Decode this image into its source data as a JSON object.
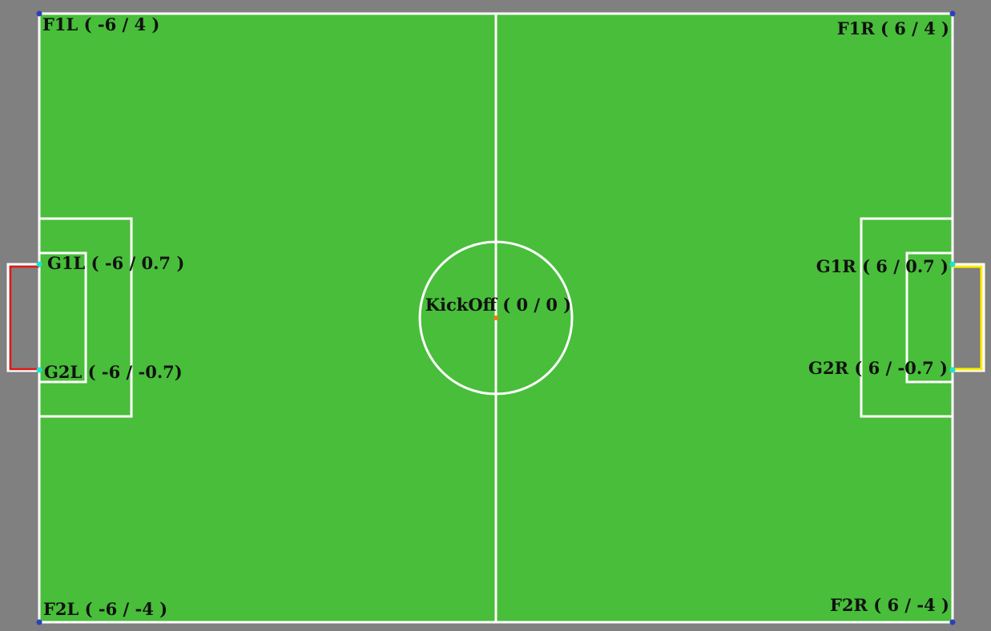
{
  "colors": {
    "background": "#808080",
    "field": "#48BE3A",
    "lines": "#FFFFFF",
    "left_goal": "#E01818",
    "right_goal": "#FFF000",
    "corner_marker": "#2A3FBF",
    "goal_post_marker": "#19E6D0",
    "kickoff_marker": "#F07818",
    "label_text": "#111111"
  },
  "landmarks": {
    "f1l": {
      "name": "F1L",
      "coords": "( -6 / 4 )",
      "x": -6,
      "y": 4
    },
    "f1r": {
      "name": "F1R",
      "coords": "( 6 / 4 )",
      "x": 6,
      "y": 4
    },
    "f2l": {
      "name": "F2L",
      "coords": "( -6 / -4 )",
      "x": -6,
      "y": -4
    },
    "f2r": {
      "name": "F2R",
      "coords": "( 6 / -4 )",
      "x": 6,
      "y": -4
    },
    "g1l": {
      "name": "G1L",
      "coords": "( -6 / 0.7 )",
      "x": -6,
      "y": 0.7
    },
    "g2l": {
      "name": "G2L",
      "coords": "( -6 / -0.7)",
      "x": -6,
      "y": -0.7
    },
    "g1r": {
      "name": "G1R",
      "coords": "( 6 / 0.7 )",
      "x": 6,
      "y": 0.7
    },
    "g2r": {
      "name": "G2R",
      "coords": "( 6 / -0.7 )",
      "x": 6,
      "y": -0.7
    },
    "kickoff": {
      "name": "KickOff",
      "coords": "( 0 / 0 )",
      "x": 0,
      "y": 0
    }
  }
}
